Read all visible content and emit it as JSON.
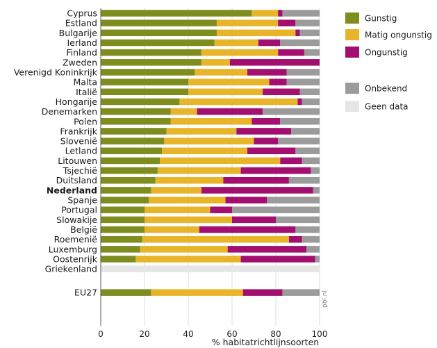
{
  "chart_data": {
    "type": "bar",
    "orientation": "horizontal",
    "stacked": true,
    "categories": [
      "Cyprus",
      "Estland",
      "Bulgarije",
      "Ierland",
      "Finland",
      "Zweden",
      "Verenigd Koninkrijk",
      "Malta",
      "Italië",
      "Hongarije",
      "Denemarken",
      "Polen",
      "Frankrijk",
      "Slovenië",
      "Letland",
      "Litouwen",
      "Tsjechië",
      "Duitsland",
      "Nederland",
      "Spanje",
      "Portugal",
      "Slowakije",
      "België",
      "Roemenië",
      "Luxemburg",
      "Oostenrijk",
      "Griekenland",
      "EU27"
    ],
    "highlight": "Nederland",
    "series": [
      {
        "name": "Gunstig",
        "color": "#7f8c1e",
        "values": [
          69,
          53,
          53,
          52,
          46,
          46,
          43,
          40,
          40,
          36,
          32,
          32,
          30,
          29,
          28,
          27,
          26,
          25,
          23,
          22,
          20,
          20,
          20,
          19,
          18,
          16,
          null,
          23
        ]
      },
      {
        "name": "Matig ongunstig",
        "color": "#e8b52a",
        "values": [
          12,
          28,
          36,
          20,
          35,
          13,
          24,
          37,
          34,
          54,
          12,
          37,
          32,
          41,
          39,
          55,
          38,
          31,
          23,
          35,
          30,
          40,
          25,
          67,
          40,
          48,
          null,
          42
        ]
      },
      {
        "name": "Ongunstig",
        "color": "#a20f6f",
        "values": [
          2,
          8,
          2,
          10,
          12,
          41,
          18,
          8,
          17,
          2,
          30,
          13,
          25,
          11,
          22,
          10,
          32,
          30,
          51,
          19,
          10,
          20,
          44,
          6,
          36,
          34,
          null,
          18
        ]
      },
      {
        "name": "Onbekend",
        "color": "#9b9b9b",
        "values": [
          17,
          11,
          9,
          18,
          7,
          0,
          15,
          15,
          9,
          8,
          26,
          18,
          13,
          19,
          11,
          8,
          4,
          14,
          3,
          24,
          40,
          20,
          11,
          8,
          6,
          2,
          null,
          17
        ]
      },
      {
        "name": "Geen data",
        "color": "#e6e6e6",
        "values": [
          0,
          0,
          0,
          0,
          0,
          0,
          0,
          0,
          0,
          0,
          0,
          0,
          0,
          0,
          0,
          0,
          0,
          0,
          0,
          0,
          0,
          0,
          0,
          0,
          0,
          0,
          100,
          0
        ]
      }
    ],
    "xlabel": "% habitatrichtlijnsoorten",
    "xlim": [
      0,
      100
    ],
    "xticks": [
      "0",
      "20",
      "40",
      "60",
      "80",
      "100"
    ],
    "legend_position": "right",
    "source_note": "pbl.nl"
  }
}
